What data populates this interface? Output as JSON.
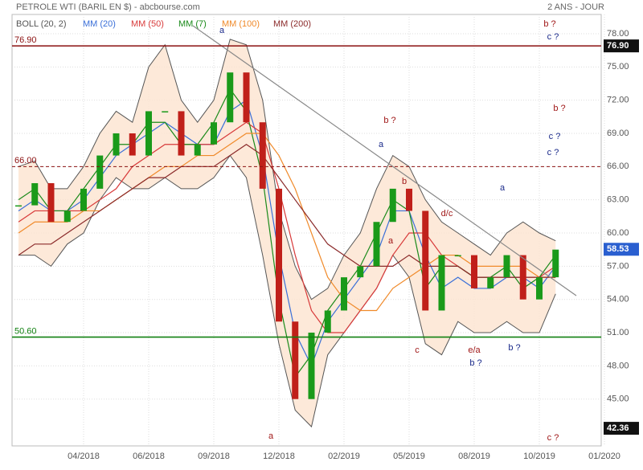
{
  "chart_data": {
    "type": "candlestick",
    "title": "PETROLE WTI (BARIL EN $) - abcbourse.com",
    "period": "2 ANS - JOUR",
    "categories": [
      null,
      null,
      null,
      null,
      "04/2018",
      null,
      null,
      null,
      "06/2018",
      null,
      null,
      null,
      "09/2018",
      null,
      null,
      null,
      "12/2018",
      null,
      null,
      null,
      "02/2019",
      null,
      null,
      null,
      "05/2019",
      null,
      null,
      null,
      "08/2019",
      null,
      null,
      null,
      "10/2019",
      null,
      null,
      null,
      "01/2020"
    ],
    "close": {
      "name": "PETROLE WTI",
      "values": [
        62.5,
        64.5,
        61,
        62,
        64,
        67,
        69,
        67,
        71,
        71,
        67,
        68,
        70,
        74.5,
        70,
        64,
        52,
        45,
        51,
        53,
        56,
        57,
        61,
        64,
        62,
        53,
        58,
        58,
        55,
        56,
        58,
        54,
        56,
        58.5,
        null,
        null,
        null
      ],
      "up_color": "#1a9a1a",
      "down_color": "#c0201a"
    },
    "bollinger": {
      "name": "BOLL (20, 2)",
      "color": "#555555",
      "fill": "#fde3cf",
      "upper": [
        66,
        66.5,
        64,
        64,
        66,
        69,
        71,
        70,
        75,
        77,
        72,
        70,
        72,
        77.5,
        77,
        72,
        62,
        57,
        54,
        55,
        58,
        60,
        64,
        67,
        66,
        63,
        61,
        60,
        59,
        58,
        60,
        61,
        60,
        59.3,
        null,
        null,
        null
      ],
      "lower": [
        58,
        58,
        57,
        59,
        60,
        63,
        65,
        64,
        64,
        65,
        64,
        64,
        65,
        67,
        65,
        58,
        50,
        44,
        42.5,
        49,
        51,
        53,
        55,
        58,
        56,
        50,
        49,
        52,
        51,
        51,
        52,
        51,
        51,
        54.5,
        null,
        null,
        null
      ]
    },
    "series": [
      {
        "name": "MM (20)",
        "color": "#3a6fd8",
        "values": [
          62,
          63,
          62,
          62,
          63,
          65,
          67,
          68,
          69,
          70,
          69,
          68,
          68,
          71,
          72,
          67,
          58,
          51,
          48,
          52,
          54,
          56,
          58,
          62,
          62,
          58,
          55,
          56,
          55,
          55,
          56,
          56,
          55,
          57,
          null,
          null,
          null
        ]
      },
      {
        "name": "MM (50)",
        "color": "#d83a3a",
        "values": [
          61,
          62,
          62,
          62,
          62,
          63,
          64,
          66,
          67,
          68,
          68,
          68,
          68,
          69,
          70,
          69,
          64,
          58,
          53,
          51,
          51,
          53,
          55,
          58,
          60,
          60,
          58,
          57,
          56,
          56,
          56,
          56,
          56,
          57,
          null,
          null,
          null
        ]
      },
      {
        "name": "MM (7)",
        "color": "#1a8a1a",
        "values": [
          63,
          64,
          62,
          62,
          64,
          66,
          68,
          68,
          70,
          70,
          68,
          68,
          70,
          73,
          71,
          65,
          54,
          47,
          49,
          53,
          55,
          57,
          60,
          63,
          62,
          55,
          57,
          57,
          56,
          56,
          57,
          55,
          56,
          58,
          null,
          null,
          null
        ]
      },
      {
        "name": "MM (100)",
        "color": "#f08a2a",
        "values": [
          60,
          61,
          61,
          61,
          62,
          62,
          63,
          64,
          65,
          66,
          66,
          67,
          67,
          68,
          69,
          69,
          67,
          64,
          60,
          56,
          54,
          53,
          53,
          55,
          56,
          57,
          58,
          58,
          57,
          57,
          57,
          57,
          56,
          56,
          null,
          null,
          null
        ]
      },
      {
        "name": "MM (200)",
        "color": "#8b2a2a",
        "values": [
          58,
          59,
          59,
          60,
          61,
          62,
          63,
          64,
          65,
          65,
          66,
          66,
          66,
          67,
          68,
          67,
          65,
          63,
          61,
          59,
          58,
          57,
          57,
          57,
          58,
          57,
          57,
          57,
          56,
          56,
          56,
          56,
          56,
          56,
          null,
          null,
          null
        ]
      }
    ],
    "ylim": [
      40.77,
      79.74
    ],
    "yticks": [
      {
        "value": 45,
        "label": "45.00"
      },
      {
        "value": 48,
        "label": "48.00"
      },
      {
        "value": 51,
        "label": "51.00"
      },
      {
        "value": 54,
        "label": "54.00"
      },
      {
        "value": 57,
        "label": "57.00"
      },
      {
        "value": 60,
        "label": "60.00"
      },
      {
        "value": 63,
        "label": "63.00"
      },
      {
        "value": 66,
        "label": "66.00"
      },
      {
        "value": 69,
        "label": "69.00"
      },
      {
        "value": 72,
        "label": "72.00"
      },
      {
        "value": 75,
        "label": "75.00"
      },
      {
        "value": 78,
        "label": "78.00"
      }
    ],
    "levels": [
      {
        "value": 76.9,
        "label": "76.90",
        "color": "#8b1010",
        "dashed": false
      },
      {
        "value": 66,
        "label": "66.00",
        "color": "#8b1010",
        "dashed": true
      },
      {
        "value": 50.6,
        "label": "50.60",
        "color": "#108010",
        "dashed": false
      }
    ],
    "tags": [
      {
        "value": 76.9,
        "label": "76.90",
        "color": "#111111"
      },
      {
        "value": 58.53,
        "label": "58.53",
        "color": "#2a5fd0"
      },
      {
        "value": 42.36,
        "label": "42.36",
        "color": "#111111"
      }
    ],
    "annotations": [
      "a",
      "b ?",
      "a",
      "b",
      "a",
      "c",
      "d/c",
      "e/a",
      "b ?",
      "a",
      "b ?",
      "c ?",
      "a",
      "b ?",
      "c ?",
      "b ?",
      "c ?",
      "c ?"
    ],
    "grid": true
  }
}
